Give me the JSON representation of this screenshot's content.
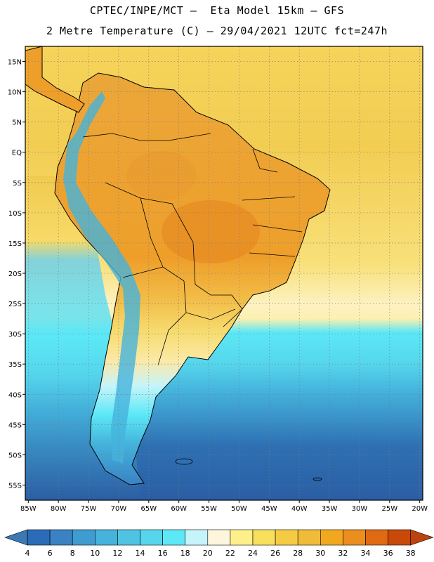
{
  "header": {
    "line1": "CPTEC/INPE/MCT –  Eta Model 15km – GFS",
    "line2": "2 Metre Temperature (C) – 29/04/2021 12UTC fct=247h"
  },
  "map": {
    "lat_labels": [
      "15N",
      "10N",
      "5N",
      "EQ",
      "5S",
      "10S",
      "15S",
      "20S",
      "25S",
      "30S",
      "35S",
      "40S",
      "45S",
      "50S",
      "55S"
    ],
    "lat_values": [
      15,
      10,
      5,
      0,
      -5,
      -10,
      -15,
      -20,
      -25,
      -30,
      -35,
      -40,
      -45,
      -50,
      -55
    ],
    "lon_labels": [
      "85W",
      "80W",
      "75W",
      "70W",
      "65W",
      "60W",
      "55W",
      "50W",
      "45W",
      "40W",
      "35W",
      "30W",
      "25W",
      "20W"
    ],
    "lon_values": [
      -85,
      -80,
      -75,
      -70,
      -65,
      -60,
      -55,
      -50,
      -45,
      -40,
      -35,
      -30,
      -25,
      -20
    ],
    "extent": {
      "lon_min": -85.5,
      "lon_max": -19.5,
      "lat_min": -57.5,
      "lat_max": 17.5
    }
  },
  "colorbar": {
    "labels": [
      "4",
      "6",
      "8",
      "10",
      "12",
      "14",
      "16",
      "18",
      "20",
      "22",
      "24",
      "26",
      "28",
      "30",
      "32",
      "34",
      "36",
      "38"
    ],
    "colors": [
      "#2b6cb8",
      "#3a82c4",
      "#3f9cd0",
      "#45b3dc",
      "#4fc4e2",
      "#55d6ec",
      "#5ce8f6",
      "#c6f4fb",
      "#fdf6dc",
      "#fdf08a",
      "#f8df5c",
      "#f5cb44",
      "#f1bb3a",
      "#f1a81e",
      "#eb8d1f",
      "#e06a12",
      "#c84908"
    ],
    "low_color": "#3c78b4",
    "high_color": "#bd420e"
  }
}
